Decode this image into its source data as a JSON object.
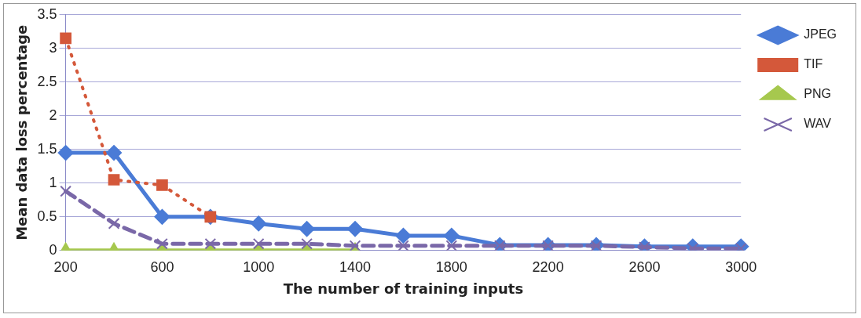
{
  "chart_data": {
    "type": "line",
    "xlabel": "The number of training inputs",
    "ylabel": "Mean data loss percentage",
    "categories": [
      "200",
      null,
      "600",
      null,
      "1000",
      null,
      "1400",
      null,
      "1800",
      null,
      "2200",
      null,
      "2600",
      null,
      "3000"
    ],
    "ylim": [
      0,
      3.5
    ],
    "yticks": [
      0,
      0.5,
      1,
      1.5,
      2,
      2.5,
      3,
      3.5
    ],
    "grid": "y",
    "legend": "right",
    "series": [
      {
        "name": "JPEG",
        "color": "#4a7bd6",
        "marker": "diamond",
        "line_style": "solid",
        "values": [
          1.45,
          1.45,
          0.5,
          0.5,
          0.4,
          0.32,
          0.32,
          0.22,
          0.22,
          0.08,
          0.08,
          0.08,
          0.06,
          0.06,
          0.06
        ]
      },
      {
        "name": "TIF",
        "color": "#d4583a",
        "marker": "square",
        "line_style": "dotted",
        "values": [
          3.15,
          1.05,
          0.97,
          0.5,
          null,
          null,
          null,
          null,
          null,
          null,
          null,
          null,
          null,
          null,
          null
        ]
      },
      {
        "name": "PNG",
        "color": "#a6c84e",
        "marker": "triangle",
        "line_style": "solid",
        "values": [
          0,
          0,
          0,
          0,
          0,
          0,
          0,
          null,
          null,
          null,
          null,
          null,
          null,
          null,
          null
        ]
      },
      {
        "name": "WAV",
        "color": "#7a68a8",
        "marker": "cross",
        "line_style": "dashed",
        "values": [
          0.88,
          0.4,
          0.1,
          0.1,
          0.1,
          0.1,
          0.07,
          0.07,
          0.07,
          0.07,
          0.07,
          0.07,
          0.05,
          0.03,
          0.03
        ]
      }
    ]
  }
}
